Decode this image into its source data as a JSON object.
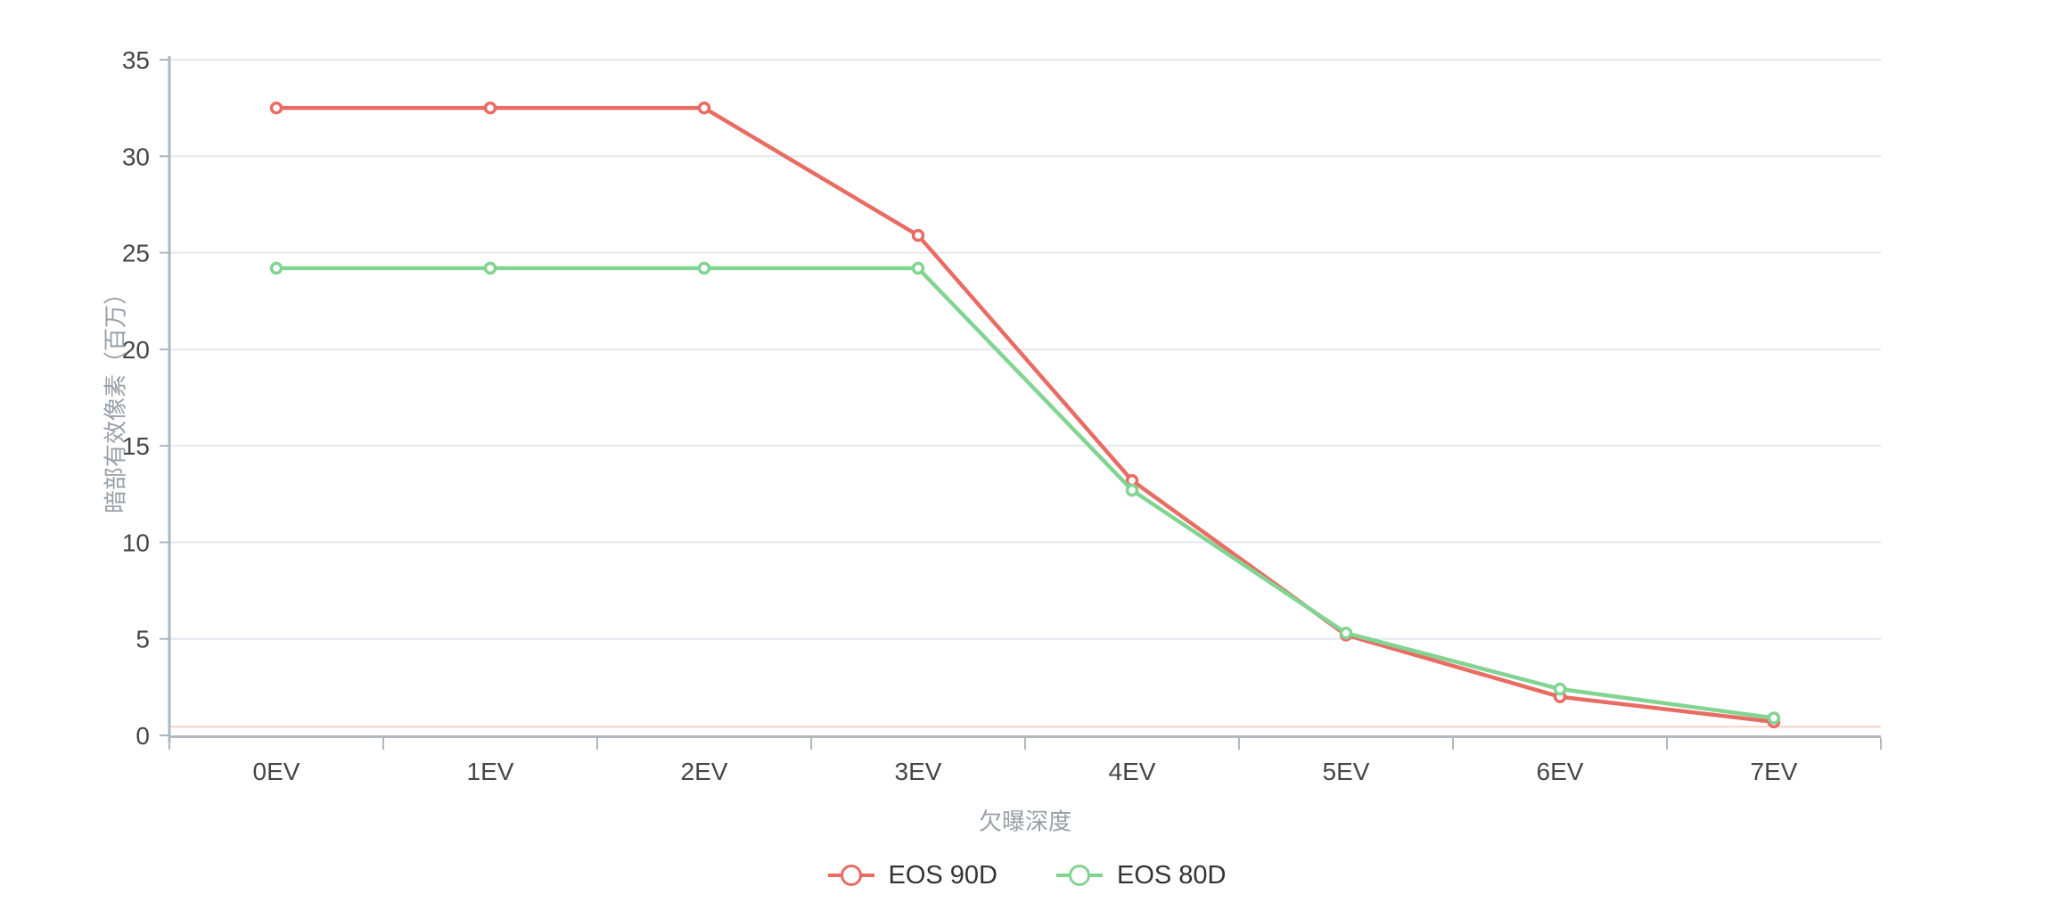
{
  "chart_data": {
    "type": "line",
    "categories": [
      "0EV",
      "1EV",
      "2EV",
      "3EV",
      "4EV",
      "5EV",
      "6EV",
      "7EV"
    ],
    "series": [
      {
        "name": "EOS 90D",
        "color": "#e96c64",
        "values": [
          32.5,
          32.5,
          32.5,
          25.9,
          13.2,
          5.2,
          2.0,
          0.7
        ]
      },
      {
        "name": "EOS 80D",
        "color": "#82d492",
        "values": [
          24.2,
          24.2,
          24.2,
          24.2,
          12.7,
          5.3,
          2.4,
          0.9
        ]
      }
    ],
    "title": "",
    "xlabel": "欠曝深度",
    "ylabel": "暗部有效像素（百万）",
    "ylim": [
      0,
      35
    ],
    "y_tick_step": 5,
    "y_tick_labels": [
      "0",
      "5",
      "10",
      "15",
      "20",
      "25",
      "30",
      "35"
    ],
    "grid": true,
    "legend_position": "bottom",
    "marker": "hollow-circle",
    "guide_line": {
      "y": 0.45
    }
  },
  "legend": {
    "items": [
      {
        "label": "EOS 90D",
        "color": "#e96c64"
      },
      {
        "label": "EOS 80D",
        "color": "#82d492"
      }
    ]
  },
  "colors": {
    "background": "#ffffff",
    "gridline": "#e4e8ef",
    "y_axis_line": "#aab8c4",
    "x_axis_line": "#b2b8bd",
    "tick_label": "#464646",
    "axis_title": "#98a0a8",
    "legend_text": "#333333",
    "faint_guide": "#f5d2cc",
    "series_red": "#e96c64",
    "series_green": "#82d492"
  }
}
